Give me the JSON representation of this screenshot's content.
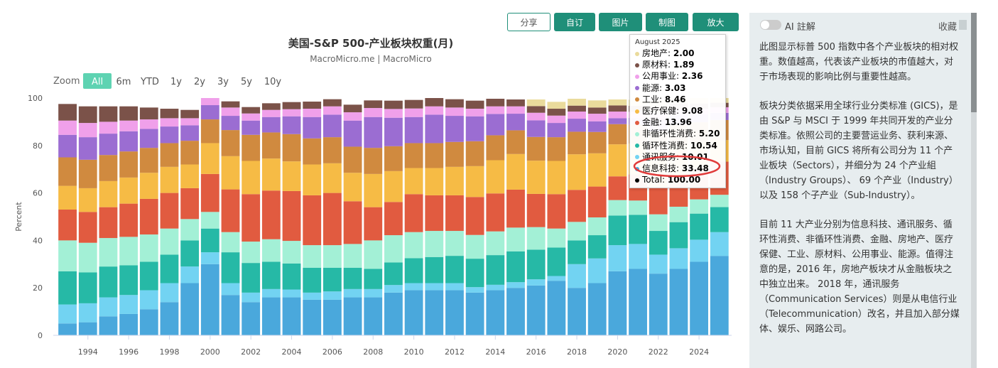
{
  "toolbar": [
    "分享",
    "自订",
    "图片",
    "制图",
    "放大"
  ],
  "zoom": {
    "label": "Zoom",
    "options": [
      "All",
      "6m",
      "YTD",
      "1y",
      "2y",
      "3y",
      "5y",
      "10y"
    ],
    "active": "All"
  },
  "panel": {
    "toggle": "AI 註解",
    "favorite": "收藏",
    "paragraphs": [
      "此图显示标普 500 指数中各个产业板块的相对权重。数值越高，代表该产业板块的市值越大，对于市场表现的影响比例与重要性越高。",
      "板块分类依据采用全球行业分类标准 (GICS)，是由 S&P 与 MSCI 于 1999 年共同开发的产业分类标准。依照公司的主要营运业务、获利来源、市场认知，目前 GICS 将所有公司分为 11 个产业板块（Sectors），并细分为 24 个产业組（Industry Groups）、 69 个产业（Industry）以及 158 个子产业（Sub-Industry）。",
      "目前 11 大产业分别为信息科技、通讯服务、循环性消费、非循环性消费、金融、房地产、医疗保健、工业、原材料、公用事业、能源。值得注意的是，2016 年，房地产板块才从金融板块之中独立出来。 2018 年，通讯服务（Communication Services）则是从电信行业（Telecommunication）改名，并且加入部分媒体、娱乐、网路公司。"
    ]
  },
  "chart_data": {
    "type": "stacked_bar",
    "title": "美国-S&P 500-产业板块权重(月)",
    "subtitle": "MacroMicro.me | MacroMicro",
    "y_label": "Percent",
    "x": [
      1993,
      1994,
      1995,
      1996,
      1997,
      1998,
      1999,
      2000,
      2001,
      2002,
      2003,
      2004,
      2005,
      2006,
      2007,
      2008,
      2009,
      2010,
      2011,
      2012,
      2013,
      2014,
      2015,
      2016,
      2017,
      2018,
      2019,
      2020,
      2021,
      2022,
      2023,
      2024,
      2025
    ],
    "xlim": [
      1992.3,
      2025.6
    ],
    "xticks": [
      1994,
      1996,
      1998,
      2000,
      2002,
      2004,
      2006,
      2008,
      2010,
      2012,
      2014,
      2016,
      2018,
      2020,
      2022,
      2024
    ],
    "ylim": [
      0,
      100
    ],
    "yticks": [
      0,
      20,
      40,
      60,
      80,
      100
    ],
    "grid": false,
    "series": [
      {
        "name": "信息科技",
        "color": "#4aa8dc",
        "values": [
          5,
          5.5,
          8,
          9,
          11,
          14,
          22,
          30,
          17,
          14,
          16,
          16,
          15,
          15,
          16,
          16,
          18,
          19,
          19,
          19,
          18,
          19,
          20,
          21,
          23,
          20,
          22,
          27,
          28,
          26,
          28,
          31,
          33.48
        ]
      },
      {
        "name": "通讯服务",
        "color": "#72d3f2",
        "values": [
          8,
          8,
          8,
          8,
          8,
          8,
          7,
          5,
          5,
          4,
          3.5,
          3.3,
          3,
          3.5,
          3.5,
          3.5,
          3.2,
          3,
          3,
          3,
          2.3,
          2.3,
          2.4,
          2.6,
          2,
          10,
          10.4,
          11,
          10.5,
          8,
          8.7,
          9.3,
          10.01
        ]
      },
      {
        "name": "循环性消费",
        "color": "#26b9a6",
        "values": [
          14,
          13,
          13,
          12.5,
          12,
          12,
          11,
          10,
          13,
          12.5,
          11.5,
          11,
          10.5,
          10,
          9,
          8.5,
          9.5,
          10.5,
          11,
          11.5,
          12,
          12.5,
          13,
          12.5,
          12,
          10,
          9.8,
          12.5,
          12.3,
          10,
          11,
          11,
          10.54
        ]
      },
      {
        "name": "非循环性消费",
        "color": "#a3f0d6",
        "values": [
          13,
          12.5,
          12,
          12,
          11.5,
          11,
          9,
          7,
          8.5,
          9,
          9.5,
          9.5,
          9.5,
          9.5,
          10,
          12,
          11.5,
          11,
          11,
          10.5,
          10,
          10,
          10,
          9.5,
          8,
          7.8,
          7.5,
          6.5,
          6,
          7,
          6.5,
          6,
          5.2
        ]
      },
      {
        "name": "金融",
        "color": "#e15b40",
        "values": [
          13,
          13,
          13,
          14,
          15,
          15,
          13,
          16,
          18,
          20,
          20.5,
          21,
          21,
          22,
          18,
          14,
          14,
          16,
          15,
          15,
          16,
          16,
          16,
          14,
          14.5,
          13.5,
          13,
          10,
          11,
          11.5,
          13,
          13,
          13.96
        ]
      },
      {
        "name": "医疗保健",
        "color": "#f6bb45",
        "values": [
          10,
          10,
          11,
          11,
          11,
          11,
          10,
          13,
          14,
          14,
          13.5,
          12.5,
          13,
          12.5,
          12,
          14,
          13,
          11,
          11.5,
          12,
          13,
          14,
          15,
          14,
          14,
          15,
          14,
          13.5,
          13,
          15,
          13,
          11,
          9.08
        ]
      },
      {
        "name": "工业",
        "color": "#d08a3f",
        "values": [
          12,
          12,
          11,
          11,
          10.5,
          10,
          10,
          10,
          11,
          11,
          11,
          11.5,
          11,
          11,
          11,
          11,
          10.5,
          10.5,
          10.5,
          10.5,
          10.5,
          10.5,
          10,
          10,
          10,
          9.5,
          9,
          8.5,
          8,
          8.5,
          8.5,
          8.5,
          8.46
        ]
      },
      {
        "name": "能源",
        "color": "#9b6dd2",
        "values": [
          9.5,
          9.5,
          9,
          8.5,
          8,
          7,
          6.5,
          6,
          6,
          6,
          6.5,
          7.5,
          9,
          9.5,
          11,
          13,
          12,
          11,
          12,
          11,
          10.5,
          9,
          7,
          7,
          6,
          5.5,
          4.5,
          2.5,
          2.8,
          5,
          4.2,
          3.3,
          3.03
        ]
      },
      {
        "name": "公用事业",
        "color": "#f0a0ea",
        "values": [
          6,
          6,
          5,
          4.5,
          4,
          3.5,
          3,
          4,
          3.5,
          3,
          3,
          3,
          3.5,
          3.5,
          3.5,
          3.8,
          3.7,
          3.6,
          3.5,
          3.5,
          3.2,
          3.2,
          3.1,
          3.2,
          3.1,
          3,
          3.2,
          2.8,
          2.6,
          2.8,
          2.5,
          2.4,
          2.36
        ]
      },
      {
        "name": "原材料",
        "color": "#7b5249",
        "values": [
          7,
          7,
          6.5,
          6,
          5,
          4,
          3.5,
          2.5,
          2.6,
          2.7,
          2.8,
          3,
          3,
          3,
          3.2,
          3.2,
          3.5,
          3.6,
          3.5,
          3.5,
          3.4,
          3.2,
          2.9,
          2.8,
          2.9,
          2.5,
          2.6,
          2.6,
          2.5,
          2.6,
          2.4,
          2.2,
          1.89
        ]
      },
      {
        "name": "房地产",
        "color": "#eadb9c",
        "values": [
          0,
          0,
          0,
          0,
          0,
          0,
          0,
          0,
          0,
          0,
          0,
          0,
          0,
          0,
          0,
          0,
          0,
          0,
          0,
          0,
          0,
          0,
          0,
          2.8,
          2.9,
          2.9,
          3,
          2.5,
          2.6,
          2.8,
          2.3,
          2.3,
          2
        ]
      }
    ],
    "tooltip": {
      "title": "August 2025",
      "value_labels": [
        "33.48",
        "10.01",
        "10.54",
        "5.20",
        "13.96",
        "9.08",
        "8.46",
        "3.03",
        "2.36",
        "1.89",
        "2.00"
      ],
      "total_name": "Total",
      "total_label": "100.00"
    }
  }
}
